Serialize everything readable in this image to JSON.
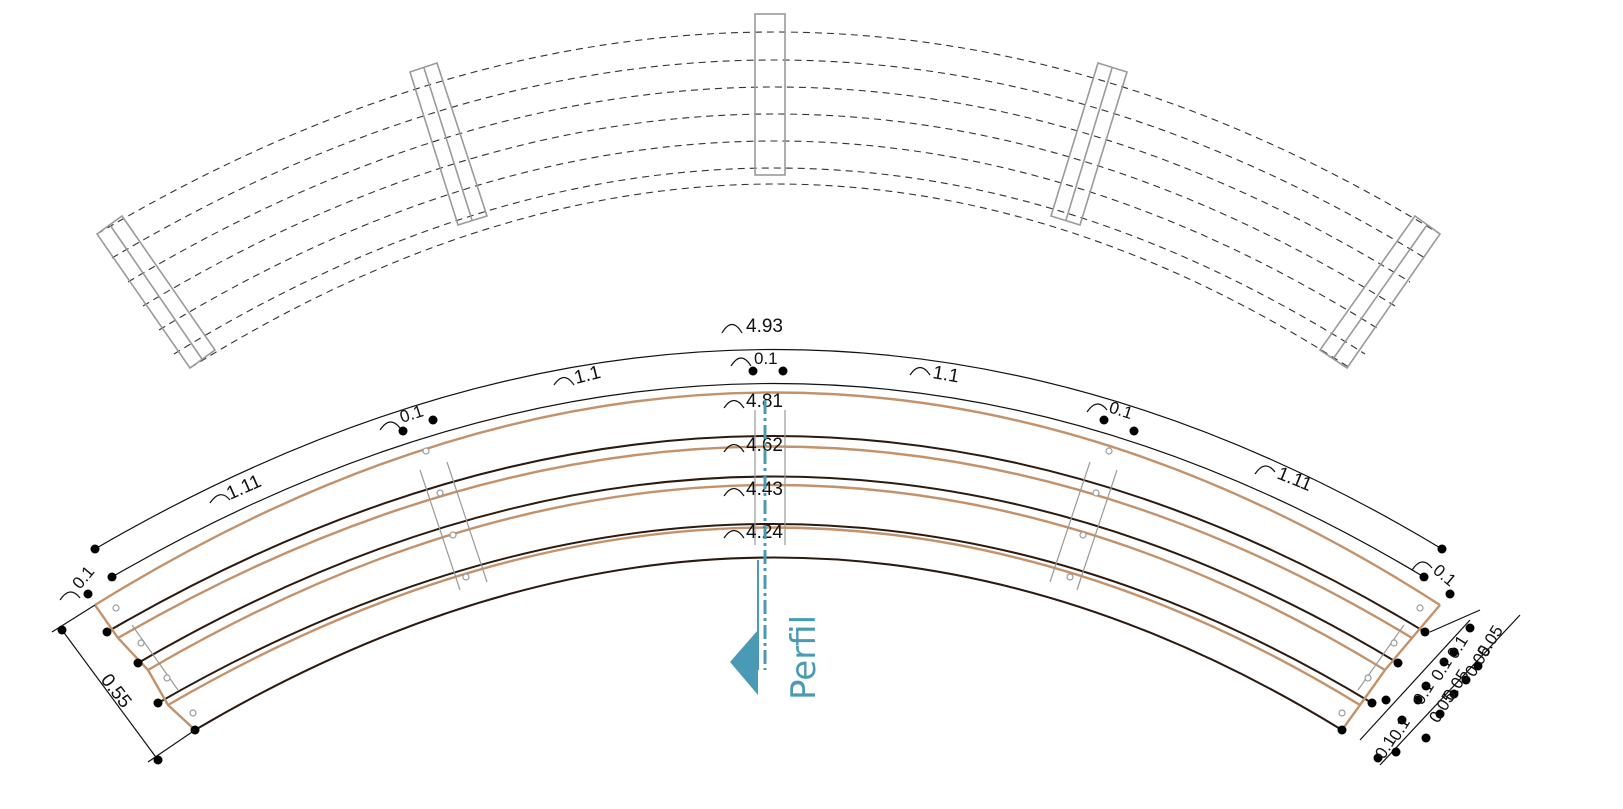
{
  "drawing": {
    "accent_colors": {
      "board_outline": "#c4926a",
      "board_inner": "#2b1a10",
      "section_line": "#4a9ab5",
      "plan_lines": "#333333",
      "plan_slats": "#9a9a9a"
    },
    "arc_labels": {
      "total": "4.93",
      "row1": "4.81",
      "row2": "4.62",
      "row3": "4.43",
      "row4": "4.24"
    },
    "segment_labels": {
      "seg_left_outer": "1.11",
      "seg_left_inner": "1.1",
      "seg_right_inner": "1.1",
      "seg_right_outer": "1.11",
      "gap_left_edge": "0.1",
      "gap_left_mid": "0.1",
      "gap_center": "0.1",
      "gap_right_mid": "0.1",
      "gap_right_edge": "0.1"
    },
    "left_dimension": "0.55",
    "right_dimensions": [
      "0.1",
      "0.05",
      "0.05",
      "0.1",
      "0.1",
      "0.05",
      "0.1",
      "0.1",
      "0.05"
    ],
    "section_label": "Perfil"
  }
}
